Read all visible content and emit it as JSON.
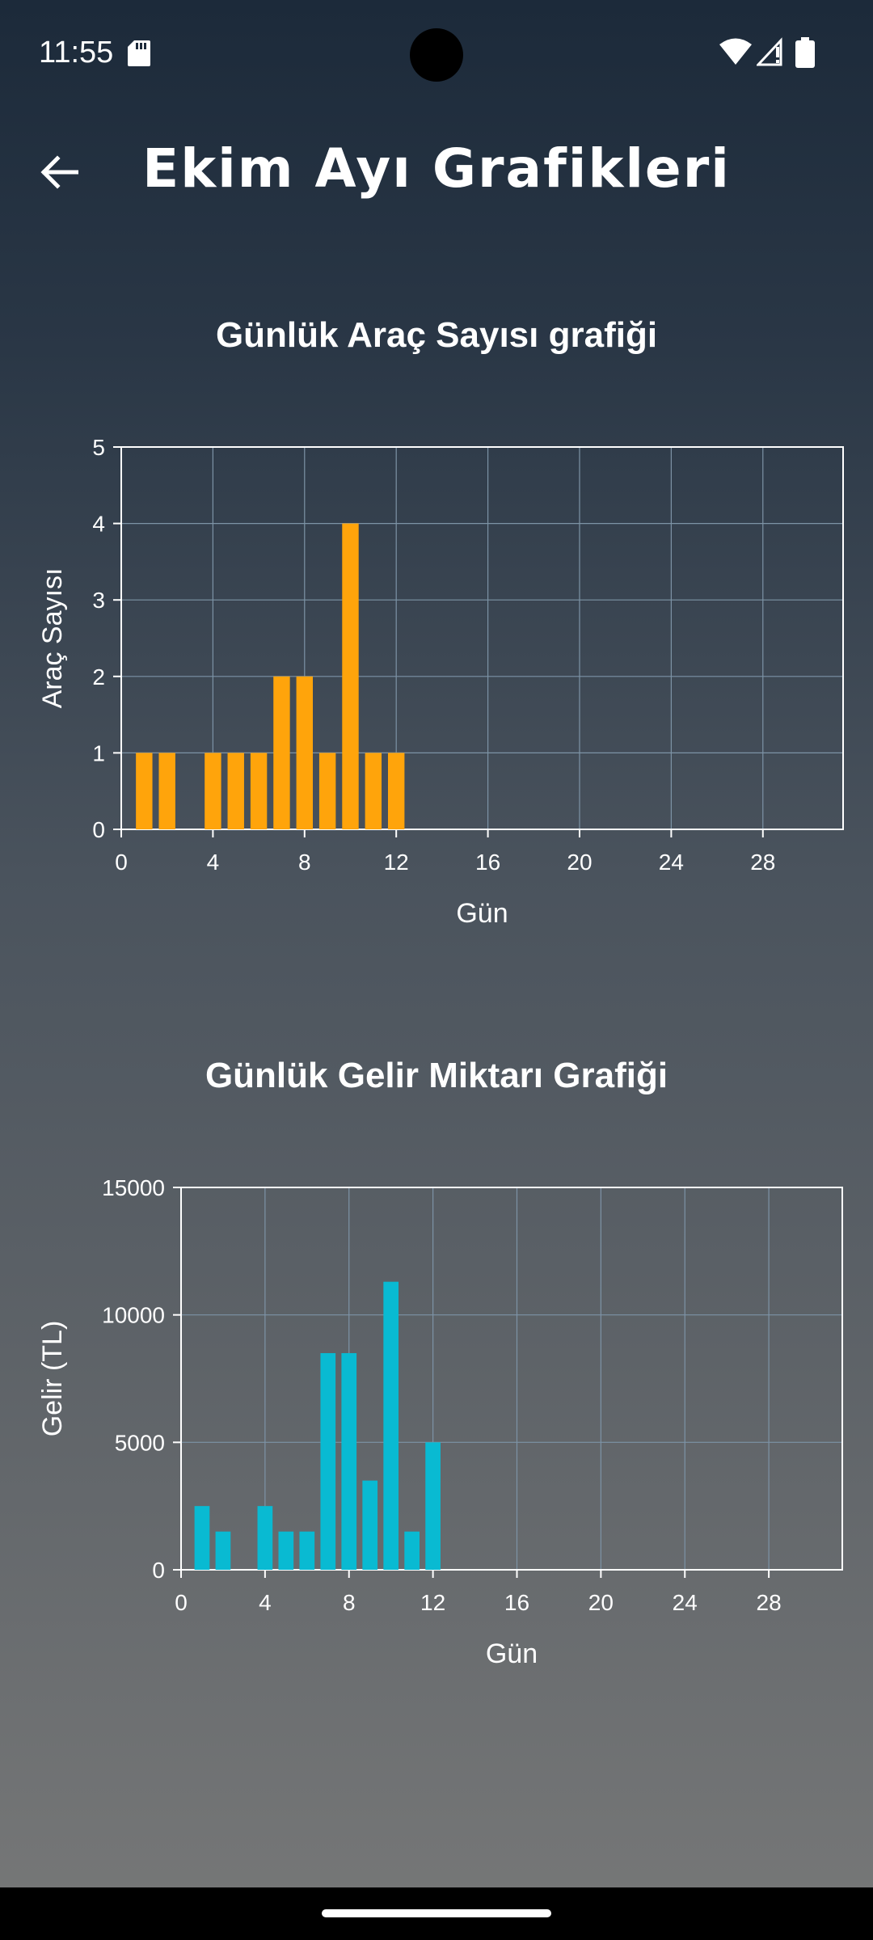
{
  "status_bar": {
    "time": "11:55"
  },
  "app_bar": {
    "title": "Ekim Ayı Grafikleri"
  },
  "colors": {
    "bar1": "#FFA40B",
    "bar2": "#09BAD2",
    "axis": "#ffffff",
    "grid": "#7d93a6"
  },
  "chart_data": [
    {
      "type": "bar",
      "title": "Günlük Araç Sayısı grafiği",
      "xlabel": "Gün",
      "ylabel": "Araç Sayısı",
      "x": [
        1,
        2,
        4,
        5,
        6,
        7,
        8,
        9,
        10,
        11,
        12
      ],
      "values": [
        1,
        1,
        1,
        1,
        1,
        2,
        2,
        1,
        4,
        1,
        1
      ],
      "xlim": [
        0,
        31.5
      ],
      "ylim": [
        0,
        5
      ],
      "xticks": [
        "0",
        "4",
        "8",
        "12",
        "16",
        "20",
        "24",
        "28"
      ],
      "yticks": [
        "0",
        "1",
        "2",
        "3",
        "4",
        "5"
      ],
      "grid": true,
      "color": "#FFA40B"
    },
    {
      "type": "bar",
      "title": "Günlük Gelir Miktarı Grafiği",
      "xlabel": "Gün",
      "ylabel": "Gelir (TL)",
      "x": [
        1,
        2,
        4,
        5,
        6,
        7,
        8,
        9,
        10,
        11,
        12
      ],
      "values": [
        2500,
        1500,
        2500,
        1500,
        1500,
        8500,
        8500,
        3500,
        11300,
        1500,
        5000
      ],
      "xlim": [
        0,
        31.5
      ],
      "ylim": [
        0,
        15000
      ],
      "xticks": [
        "0",
        "4",
        "8",
        "12",
        "16",
        "20",
        "24",
        "28"
      ],
      "yticks": [
        "0",
        "5000",
        "10000",
        "15000"
      ],
      "grid": true,
      "color": "#09BAD2"
    }
  ]
}
